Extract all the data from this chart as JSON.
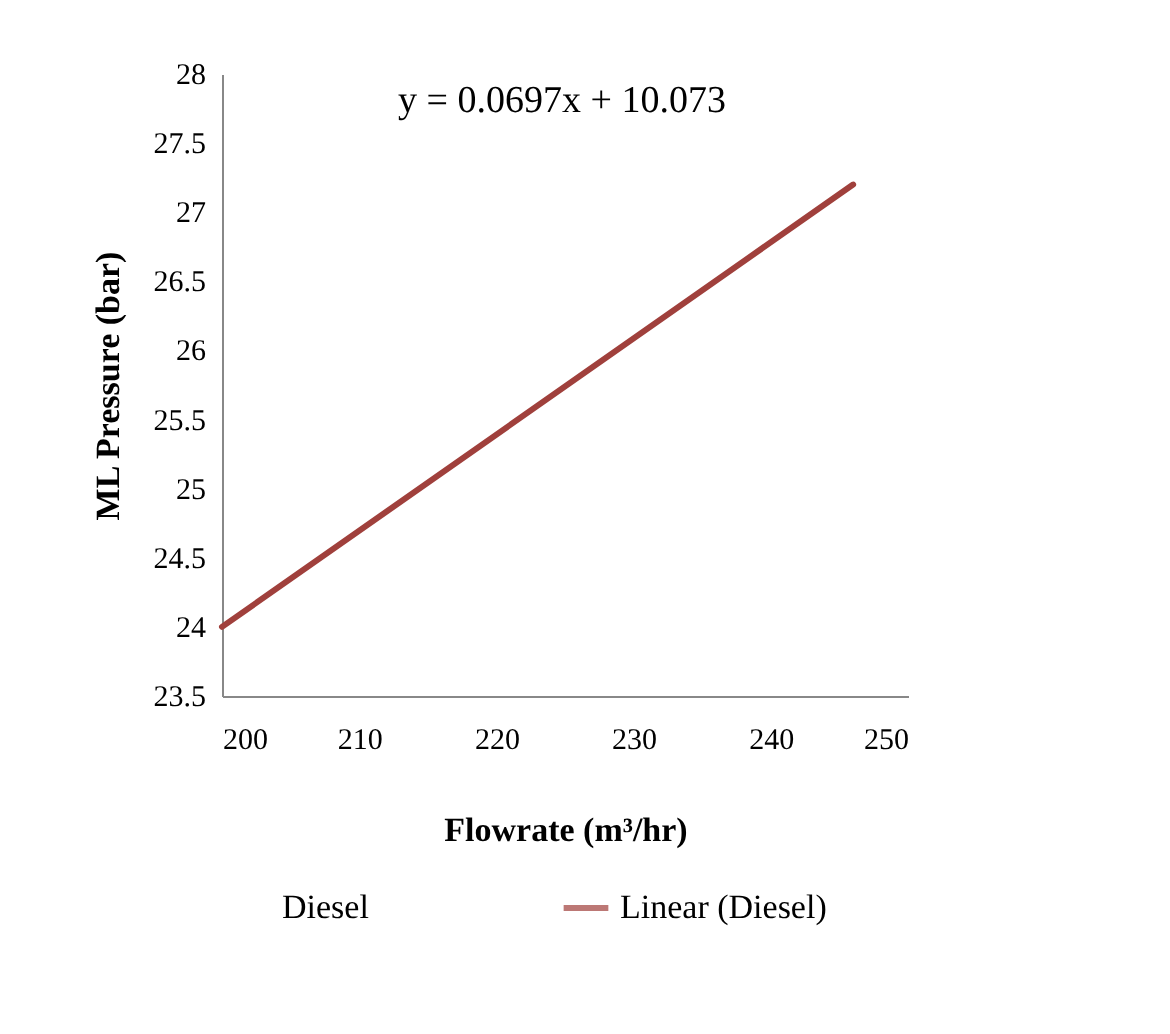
{
  "chart_data": {
    "type": "line",
    "xlabel": "Flowrate (m³/hr)",
    "ylabel": "ML Pressure (bar)",
    "annotations": [
      "y = 0.0697x + 10.073"
    ],
    "xlim": [
      200,
      250
    ],
    "xticks": [
      200,
      210,
      220,
      230,
      240,
      250
    ],
    "ylim": [
      23.5,
      28
    ],
    "yticks": [
      23.5,
      24,
      24.5,
      25,
      25.5,
      26,
      26.5,
      27,
      27.5,
      28
    ],
    "grid": false,
    "legend": "bottom",
    "marker": "none",
    "line_style": "solid",
    "series": [
      {
        "name": "Diesel",
        "type": "scatter"
      },
      {
        "name": "Linear (Diesel)",
        "type": "line",
        "color": "#a0403c",
        "x": [
          200,
          246
        ],
        "values": [
          24.0,
          27.2
        ]
      }
    ]
  }
}
